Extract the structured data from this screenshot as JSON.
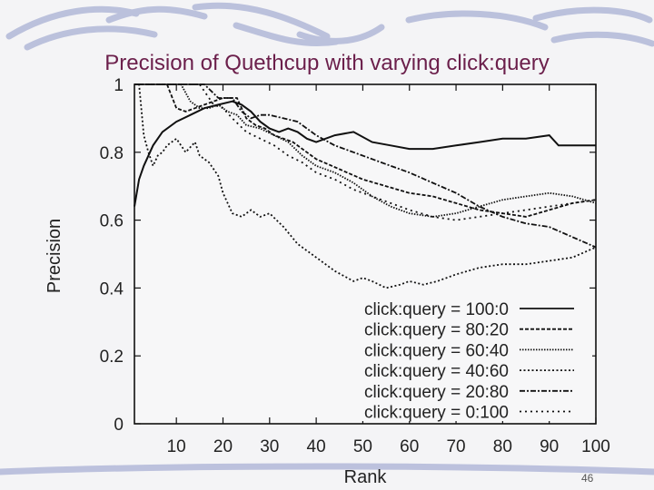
{
  "slide": {
    "title": "Precision of Quethcup with varying click:query",
    "page_number": "46",
    "accent_color": "#6b1f4b"
  },
  "chart_data": {
    "type": "line",
    "title": "",
    "xlabel": "Rank",
    "ylabel": "Precision",
    "xlim": [
      1,
      100
    ],
    "ylim": [
      0,
      1
    ],
    "xticks": [
      10,
      20,
      30,
      40,
      50,
      60,
      70,
      80,
      90,
      100
    ],
    "yticks": [
      0,
      0.2,
      0.4,
      0.6,
      0.8,
      1
    ],
    "legend_position": "bottom-right",
    "grid": false,
    "series": [
      {
        "name": "click:query = 100:0",
        "dash": "solid",
        "x": [
          1,
          2,
          3,
          5,
          7,
          10,
          13,
          16,
          19,
          22,
          24,
          26,
          28,
          30,
          32,
          34,
          36,
          38,
          40,
          44,
          48,
          52,
          56,
          60,
          65,
          70,
          75,
          80,
          85,
          90,
          92,
          95,
          100
        ],
        "y": [
          0.64,
          0.72,
          0.76,
          0.82,
          0.86,
          0.89,
          0.91,
          0.93,
          0.94,
          0.95,
          0.94,
          0.92,
          0.89,
          0.87,
          0.86,
          0.87,
          0.86,
          0.84,
          0.83,
          0.85,
          0.86,
          0.83,
          0.82,
          0.81,
          0.81,
          0.82,
          0.83,
          0.84,
          0.84,
          0.85,
          0.82,
          0.82,
          0.82
        ]
      },
      {
        "name": "click:query = 80:20",
        "dash": "dash",
        "x": [
          1,
          2,
          3,
          5,
          8,
          10,
          12,
          14,
          16,
          18,
          20,
          23,
          25,
          27,
          29,
          31,
          33,
          35,
          40,
          45,
          50,
          55,
          60,
          65,
          70,
          75,
          80,
          85,
          90,
          95,
          100
        ],
        "y": [
          1,
          1,
          1,
          1,
          1,
          0.93,
          0.92,
          0.93,
          0.94,
          0.95,
          0.96,
          0.96,
          0.9,
          0.88,
          0.87,
          0.85,
          0.84,
          0.83,
          0.78,
          0.75,
          0.72,
          0.7,
          0.68,
          0.67,
          0.65,
          0.63,
          0.62,
          0.61,
          0.63,
          0.65,
          0.66
        ]
      },
      {
        "name": "click:query = 60:40",
        "dash": "dot-fine",
        "x": [
          1,
          2,
          3,
          4,
          5,
          7,
          9,
          11,
          13,
          15,
          17,
          19,
          21,
          23,
          25,
          28,
          31,
          34,
          37,
          40,
          44,
          48,
          52,
          56,
          60,
          65,
          70,
          75,
          80,
          85,
          90,
          95,
          100
        ],
        "y": [
          1,
          1,
          1,
          1,
          1,
          1,
          1,
          1,
          0.95,
          0.93,
          0.93,
          0.94,
          0.92,
          0.91,
          0.88,
          0.87,
          0.85,
          0.83,
          0.79,
          0.76,
          0.74,
          0.71,
          0.67,
          0.64,
          0.62,
          0.61,
          0.62,
          0.64,
          0.66,
          0.67,
          0.68,
          0.67,
          0.65
        ]
      },
      {
        "name": "click:query = 40:60",
        "dash": "dot",
        "x": [
          1,
          2,
          3,
          4,
          5,
          6,
          7,
          8,
          10,
          12,
          14,
          15,
          17,
          19,
          20,
          22,
          24,
          26,
          28,
          30,
          33,
          36,
          40,
          44,
          48,
          50,
          52,
          55,
          58,
          60,
          63,
          66,
          70,
          75,
          80,
          85,
          90,
          95,
          100
        ],
        "y": [
          1,
          1,
          0.85,
          0.8,
          0.76,
          0.79,
          0.8,
          0.82,
          0.84,
          0.8,
          0.83,
          0.79,
          0.77,
          0.73,
          0.68,
          0.62,
          0.61,
          0.63,
          0.61,
          0.62,
          0.58,
          0.53,
          0.49,
          0.45,
          0.42,
          0.43,
          0.42,
          0.4,
          0.41,
          0.42,
          0.41,
          0.42,
          0.44,
          0.46,
          0.47,
          0.47,
          0.48,
          0.49,
          0.52
        ]
      },
      {
        "name": "click:query = 20:80",
        "dash": "dashdot",
        "x": [
          1,
          2,
          3,
          6,
          10,
          13,
          16,
          19,
          22,
          24,
          26,
          28,
          30,
          33,
          36,
          40,
          44,
          48,
          52,
          56,
          60,
          65,
          70,
          75,
          80,
          85,
          90,
          95,
          100
        ],
        "y": [
          1,
          1,
          1,
          1,
          1,
          1,
          1,
          0.96,
          0.96,
          0.92,
          0.9,
          0.91,
          0.91,
          0.9,
          0.89,
          0.85,
          0.82,
          0.8,
          0.78,
          0.76,
          0.74,
          0.71,
          0.68,
          0.64,
          0.61,
          0.59,
          0.58,
          0.55,
          0.52
        ]
      },
      {
        "name": "click:query = 0:100",
        "dash": "sparse-dot",
        "x": [
          1,
          2,
          3,
          4,
          5,
          7,
          9,
          12,
          15,
          18,
          20,
          22,
          25,
          28,
          31,
          34,
          37,
          40,
          44,
          48,
          52,
          56,
          60,
          65,
          70,
          75,
          80,
          85,
          90,
          95,
          100
        ],
        "y": [
          1,
          1,
          1,
          1,
          1,
          1,
          1,
          1,
          1,
          0.94,
          0.93,
          0.9,
          0.86,
          0.84,
          0.82,
          0.79,
          0.77,
          0.74,
          0.72,
          0.69,
          0.67,
          0.65,
          0.63,
          0.61,
          0.6,
          0.61,
          0.62,
          0.63,
          0.64,
          0.65,
          0.66
        ]
      }
    ]
  }
}
